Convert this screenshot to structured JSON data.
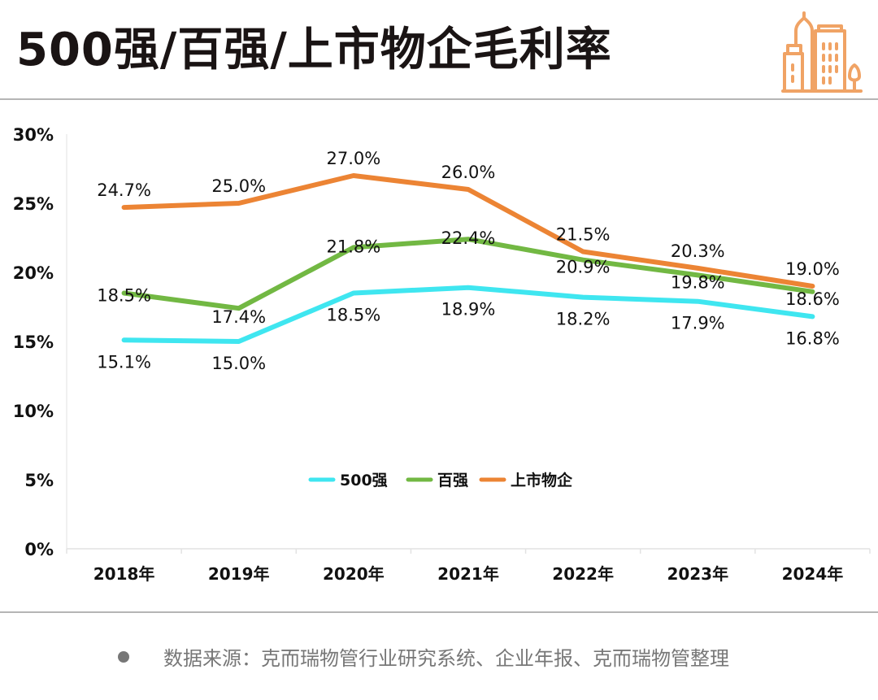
{
  "header": {
    "title": "500强/百强/上市物企毛利率",
    "logo_icon": "city-buildings-icon"
  },
  "footer": {
    "bullet_icon": "bullet-dot-icon",
    "source_text": "数据来源：克而瑞物管行业研究系统、企业年报、克而瑞物管整理"
  },
  "colors": {
    "series_500": "#3fe6f0",
    "series_top100": "#72b843",
    "series_listed": "#ec8434",
    "logo": "#f0a365",
    "axis_text": "#111111",
    "source_text": "#777777"
  },
  "chart_data": {
    "type": "line",
    "title": "500强/百强/上市物企毛利率",
    "xlabel": "",
    "ylabel": "",
    "categories": [
      "2018年",
      "2019年",
      "2020年",
      "2021年",
      "2022年",
      "2023年",
      "2024年"
    ],
    "ylim": [
      0,
      30
    ],
    "yticks": [
      0,
      5,
      10,
      15,
      20,
      25,
      30
    ],
    "ytick_labels": [
      "0%",
      "5%",
      "10%",
      "15%",
      "20%",
      "25%",
      "30%"
    ],
    "grid": false,
    "legend_position": "center",
    "series": [
      {
        "name": "500强",
        "color": "#3fe6f0",
        "values": [
          15.1,
          15.0,
          18.5,
          18.9,
          18.2,
          17.9,
          16.8
        ],
        "labels": [
          "15.1%",
          "15.0%",
          "18.5%",
          "18.9%",
          "18.2%",
          "17.9%",
          "16.8%"
        ]
      },
      {
        "name": "百强",
        "color": "#72b843",
        "values": [
          18.5,
          17.4,
          21.8,
          22.4,
          20.9,
          19.8,
          18.6
        ],
        "labels": [
          "18.5%",
          "17.4%",
          "21.8%",
          "22.4%",
          "20.9%",
          "19.8%",
          "18.6%"
        ]
      },
      {
        "name": "上市物企",
        "color": "#ec8434",
        "values": [
          24.7,
          25.0,
          27.0,
          26.0,
          21.5,
          20.3,
          19.0
        ],
        "labels": [
          "24.7%",
          "25.0%",
          "27.0%",
          "26.0%",
          "21.5%",
          "20.3%",
          "19.0%"
        ]
      }
    ]
  }
}
